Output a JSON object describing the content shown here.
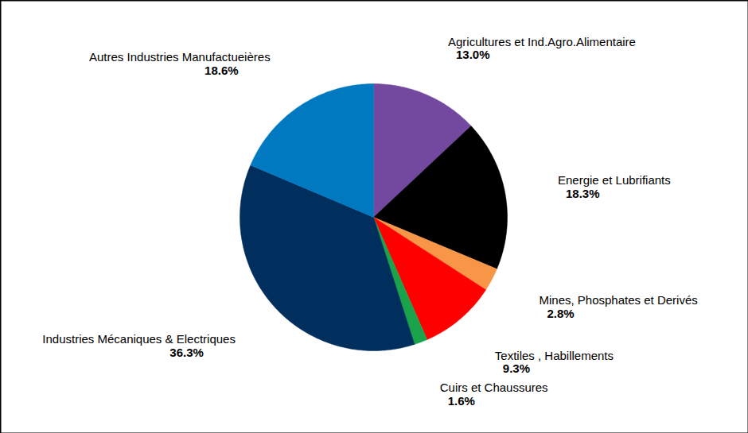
{
  "chart_data": {
    "type": "pie",
    "categories": [
      "Agricultures et Ind.Agro.Alimentaire",
      "Energie et Lubrifiants",
      "Mines, Phosphates et Derivés",
      "Textiles , Habillements",
      "Cuirs et Chaussures",
      "Industries Mécaniques & Electriques",
      "Autres Industries Manufactueières"
    ],
    "values": [
      13.0,
      18.3,
      2.8,
      9.3,
      1.6,
      36.3,
      18.6
    ],
    "value_labels": [
      "13.0%",
      "18.3%",
      "2.8%",
      "9.3%",
      "1.6%",
      "36.3%",
      "18.6%"
    ],
    "colors": [
      "#7349a0",
      "#000000",
      "#f79646",
      "#ff0000",
      "#1aa34a",
      "#002e5d",
      "#0079c1"
    ],
    "data_labels": true
  }
}
